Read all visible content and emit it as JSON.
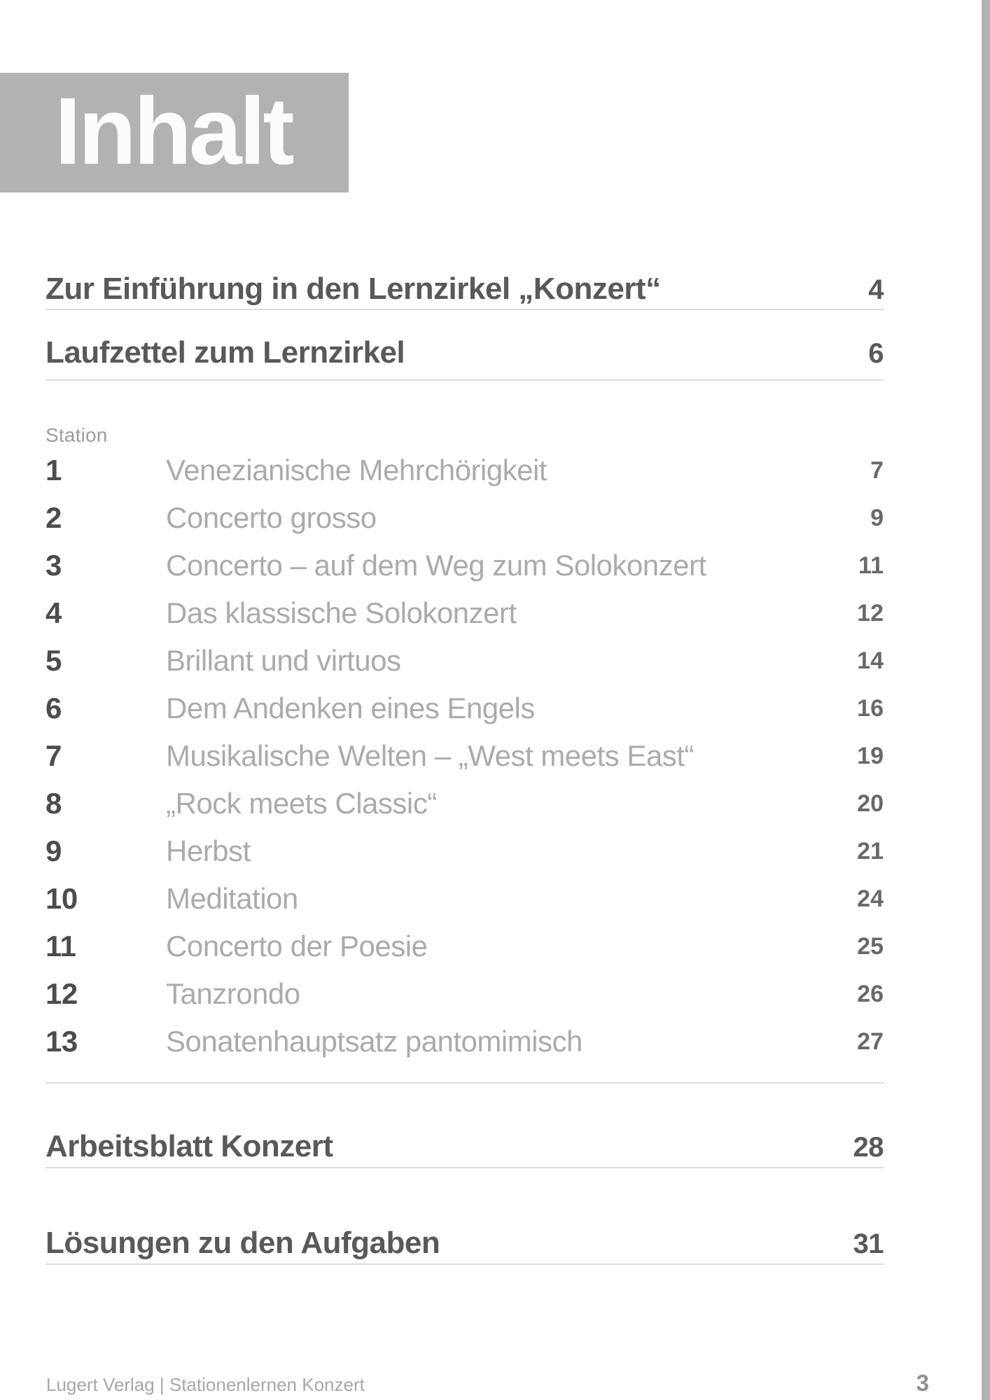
{
  "header": {
    "title": "Inhalt"
  },
  "toc": {
    "intro_entries": [
      {
        "label": "Zur Einführung in den Lernzirkel „Konzert“",
        "page": "4"
      },
      {
        "label": "Laufzettel zum Lernzirkel",
        "page": "6"
      }
    ],
    "station_label": "Station",
    "stations": [
      {
        "number": "1",
        "title": "Venezianische Mehrchörigkeit",
        "page": "7"
      },
      {
        "number": "2",
        "title": "Concerto grosso",
        "page": "9"
      },
      {
        "number": "3",
        "title": "Concerto – auf dem Weg zum Solokonzert",
        "page": "11"
      },
      {
        "number": "4",
        "title": "Das klassische Solokonzert",
        "page": "12"
      },
      {
        "number": "5",
        "title": "Brillant und virtuos",
        "page": "14"
      },
      {
        "number": "6",
        "title": "Dem Andenken eines Engels",
        "page": "16"
      },
      {
        "number": "7",
        "title": "Musikalische Welten – „West meets East“",
        "page": "19"
      },
      {
        "number": "8",
        "title": "„Rock meets Classic“",
        "page": "20"
      },
      {
        "number": "9",
        "title": "Herbst",
        "page": "21"
      },
      {
        "number": "10",
        "title": "Meditation",
        "page": "24"
      },
      {
        "number": "11",
        "title": "Concerto der Poesie",
        "page": "25"
      },
      {
        "number": "12",
        "title": "Tanzrondo",
        "page": "26"
      },
      {
        "number": "13",
        "title": "Sonatenhauptsatz pantomimisch",
        "page": "27"
      }
    ],
    "end_entries": [
      {
        "label": "Arbeitsblatt Konzert",
        "page": "28"
      },
      {
        "label": "Lösungen zu den Aufgaben",
        "page": "31"
      }
    ]
  },
  "footer": {
    "imprint": "Lugert Verlag | Stationenlernen Konzert",
    "page_number": "3"
  },
  "colors": {
    "gray_band": "#b1b2b4",
    "header_title": "#fbfcfc",
    "heading_text": "#58595b",
    "station_number": "#4b4c4e",
    "station_title": "#a9abad",
    "station_page": "#68696b",
    "station_label": "#9b9da0",
    "rule": "#dcdde0",
    "footer_text": "#a6a8aa",
    "footer_page": "#8e9092"
  }
}
